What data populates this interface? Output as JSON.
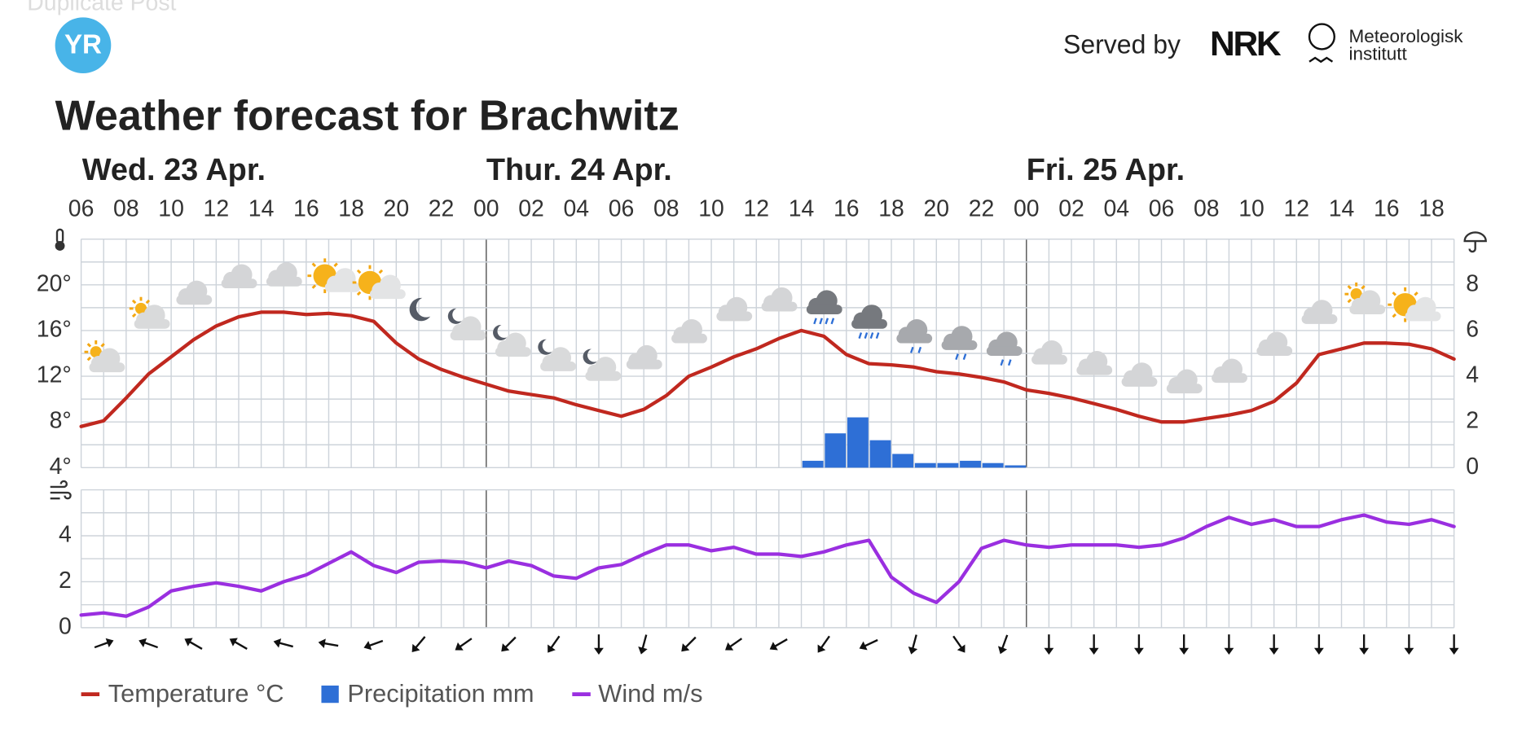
{
  "overlay": "Duplicate Post",
  "header": {
    "logo": "YR",
    "served_by": "Served by",
    "nrk": "NRK",
    "met": [
      "Meteorologisk",
      "institutt"
    ]
  },
  "chart_data": [
    {
      "type": "line",
      "title": "Weather forecast for Brachwitz",
      "days": [
        "Wed. 23 Apr.",
        "Thur. 24 Apr.",
        "Fri. 25 Apr."
      ],
      "categories": [
        "06",
        null,
        "08",
        null,
        "10",
        null,
        "12",
        null,
        "14",
        null,
        "16",
        null,
        "18",
        null,
        "20",
        null,
        "22",
        null,
        "00",
        null,
        "02",
        null,
        "04",
        null,
        "06",
        null,
        "08",
        null,
        "10",
        null,
        "12",
        null,
        "14",
        null,
        "16",
        null,
        "18",
        null,
        "20",
        null,
        "22",
        null,
        "00",
        null,
        "02",
        null,
        "04",
        null,
        "06",
        null,
        "08",
        null,
        "10",
        null,
        "12",
        null,
        "14",
        null,
        "16",
        null,
        "18",
        null
      ],
      "ylim": [
        4,
        24
      ],
      "yticks": [
        {
          "value": 4,
          "label": "4°"
        },
        {
          "value": 8,
          "label": "8°"
        },
        {
          "value": 12,
          "label": "12°"
        },
        {
          "value": 16,
          "label": "16°"
        },
        {
          "value": 20,
          "label": "20°"
        }
      ],
      "y2lim": [
        0,
        10
      ],
      "y2ticks": [
        0,
        2,
        4,
        6,
        8
      ],
      "grid": true,
      "series": [
        {
          "name": "Temperature °C",
          "type": "line",
          "color": "#c0281f",
          "values": [
            7.6,
            8.1,
            10.1,
            12.2,
            13.7,
            15.2,
            16.4,
            17.2,
            17.6,
            17.6,
            17.4,
            17.5,
            17.3,
            16.8,
            14.9,
            13.5,
            12.6,
            11.9,
            11.3,
            10.7,
            10.4,
            10.1,
            9.5,
            9.0,
            8.5,
            9.1,
            10.3,
            12.0,
            12.8,
            13.7,
            14.4,
            15.3,
            16.0,
            15.5,
            13.9,
            13.1,
            13.0,
            12.8,
            12.4,
            12.2,
            11.9,
            11.5,
            10.8,
            10.5,
            10.1,
            9.6,
            9.1,
            8.5,
            8.0,
            8.0,
            8.3,
            8.6,
            9.0,
            9.8,
            11.4,
            13.9,
            14.4,
            14.9,
            14.9,
            14.8,
            14.4,
            13.5
          ]
        },
        {
          "name": "Precipitation mm",
          "type": "bar",
          "axis": "y2",
          "color": "#2e6fd6",
          "values": [
            null,
            null,
            null,
            null,
            null,
            null,
            null,
            null,
            null,
            null,
            null,
            null,
            null,
            null,
            null,
            null,
            null,
            null,
            null,
            null,
            null,
            null,
            null,
            null,
            null,
            null,
            null,
            null,
            null,
            null,
            null,
            null,
            0.3,
            1.5,
            2.2,
            1.2,
            0.6,
            0.2,
            0.2,
            0.3,
            0.2,
            0.1,
            null,
            null,
            null,
            null,
            null,
            null,
            null,
            null,
            null,
            null,
            null,
            null,
            null,
            null,
            null,
            null,
            null,
            null,
            null,
            null
          ]
        }
      ]
    },
    {
      "type": "line",
      "ylim": [
        0,
        6
      ],
      "yticks": [
        0,
        2,
        4
      ],
      "grid": true,
      "series": [
        {
          "name": "Wind m/s",
          "type": "line",
          "color": "#9a2fe0",
          "values": [
            0.55,
            0.64,
            0.5,
            0.9,
            1.6,
            1.8,
            1.95,
            1.8,
            1.6,
            2.0,
            2.3,
            2.8,
            3.3,
            2.7,
            2.4,
            2.85,
            2.9,
            2.85,
            2.6,
            2.9,
            2.7,
            2.25,
            2.15,
            2.6,
            2.75,
            3.2,
            3.6,
            3.6,
            3.35,
            3.5,
            3.2,
            3.2,
            3.1,
            3.3,
            3.6,
            3.8,
            2.2,
            1.5,
            1.1,
            2.0,
            3.45,
            3.8,
            3.6,
            3.5,
            3.6,
            3.6,
            3.6,
            3.5,
            3.6,
            3.9,
            4.4,
            4.8,
            4.5,
            4.7,
            4.4,
            4.4,
            4.7,
            4.9,
            4.6,
            4.5,
            4.7,
            4.4
          ]
        }
      ],
      "wind_directions": [
        70,
        290,
        300,
        300,
        285,
        280,
        250,
        220,
        235,
        225,
        215,
        180,
        195,
        225,
        235,
        240,
        215,
        245,
        195,
        145,
        200,
        180,
        180,
        180,
        180,
        180,
        180,
        180,
        180,
        180,
        180
      ]
    }
  ]
}
